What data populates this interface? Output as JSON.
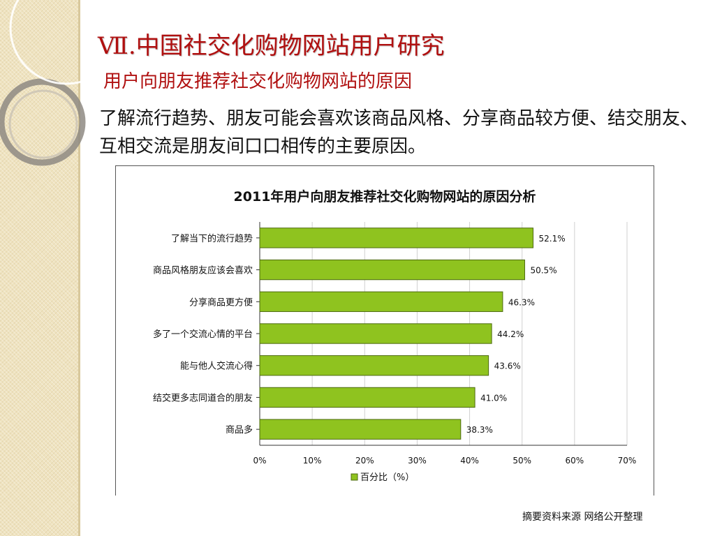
{
  "slide": {
    "title": "Ⅶ.中国社交化购物网站用户研究",
    "subtitle": "用户向朋友推荐社交化购物网站的原因",
    "body": "了解流行趋势、朋友可能会喜欢该商品风格、分享商品较方便、结交朋友、互相交流是朋友间口口相传的主要原因。",
    "source": "摘要资料来源 网络公开整理"
  },
  "colors": {
    "title": "#b01010",
    "bar": "#8fc31f",
    "bar_border": "#4d6a10",
    "legend_swatch": "#8fc31f"
  },
  "chart_data": {
    "type": "bar",
    "orientation": "horizontal",
    "title": "2011年用户向朋友推荐社交化购物网站的原因分析",
    "categories": [
      "了解当下的流行趋势",
      "商品风格朋友应该会喜欢",
      "分享商品更方便",
      "多了一个交流心情的平台",
      "能与他人交流心得",
      "结交更多志同道合的朋友",
      "商品多"
    ],
    "values": [
      52.1,
      50.5,
      46.3,
      44.2,
      43.6,
      41.0,
      38.3
    ],
    "value_labels": [
      "52.1%",
      "50.5%",
      "46.3%",
      "44.2%",
      "43.6%",
      "41.0%",
      "38.3%"
    ],
    "xlim": [
      0,
      70
    ],
    "xticks": [
      0,
      10,
      20,
      30,
      40,
      50,
      60,
      70
    ],
    "xtick_labels": [
      "0%",
      "10%",
      "20%",
      "30%",
      "40%",
      "50%",
      "60%",
      "70%"
    ],
    "series": [
      {
        "name": "百分比（%）",
        "values": [
          52.1,
          50.5,
          46.3,
          44.2,
          43.6,
          41.0,
          38.3
        ]
      }
    ],
    "legend_position": "bottom",
    "grid": true
  }
}
